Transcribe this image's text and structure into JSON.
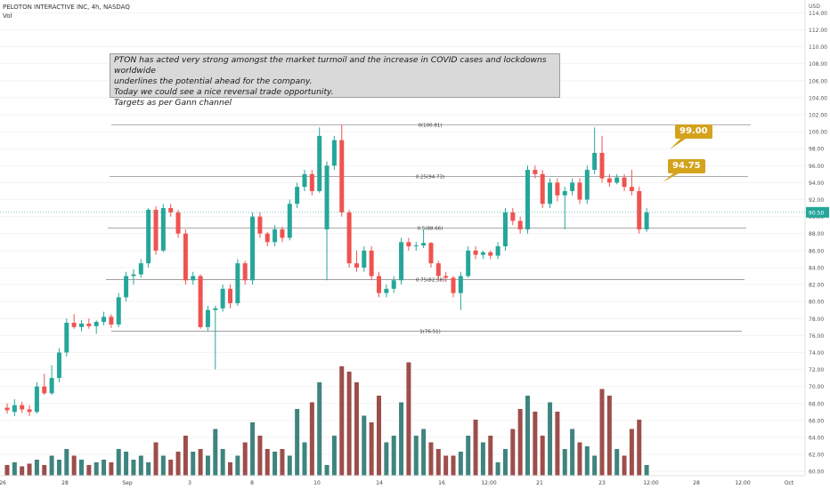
{
  "header": {
    "symbol": "PELOTON INTERACTIVE INC, 4h, NASDAQ",
    "volume_label": "Vol"
  },
  "annotation": {
    "lines": [
      "PTON has acted very strong amongst the market turmoil and the increase in COVID cases and lockdowns worldwide",
      "underlines the potential ahead for the company.",
      "Today we could see a nice reversal trade opportunity.",
      "Targets as per Gann channel"
    ]
  },
  "callouts": [
    {
      "label": "99.00",
      "value": 99.0,
      "color": "#d4a31c"
    },
    {
      "label": "94.75",
      "value": 94.75,
      "color": "#d4a31c"
    }
  ],
  "chart_data": {
    "type": "candlestick",
    "currency": "USD",
    "x_ticks": [
      "26",
      "28",
      "Sep",
      "3",
      "8",
      "10",
      "14",
      "16",
      "12:00",
      "21",
      "23",
      "12:00",
      "28",
      "12:00",
      "Oct"
    ],
    "y_ticks": [
      "114.00",
      "112.00",
      "110.00",
      "108.00",
      "106.00",
      "104.00",
      "102.00",
      "100.00",
      "98.00",
      "96.00",
      "94.00",
      "92.00",
      "90.00",
      "88.00",
      "86.00",
      "84.00",
      "82.00",
      "80.00",
      "78.00",
      "76.00",
      "74.00",
      "72.00",
      "70.00",
      "68.00",
      "66.00",
      "64.00",
      "62.00",
      "60.00"
    ],
    "ylim": [
      59.5,
      115.5
    ],
    "last_price": {
      "value": 90.5,
      "label": "90.50"
    },
    "fib_levels": [
      {
        "ratio": 0,
        "price": 100.81,
        "label": "0(100.81)"
      },
      {
        "ratio": 0.25,
        "price": 94.73,
        "label": "0.25(94.73)"
      },
      {
        "ratio": 0.5,
        "price": 88.66,
        "label": "0.5(88.66)"
      },
      {
        "ratio": 0.75,
        "price": 82.58,
        "label": "0.75(82.58)"
      },
      {
        "ratio": 1,
        "price": 76.51,
        "label": "1(76.51)"
      }
    ],
    "candles": [
      {
        "o": 67.5,
        "h": 68.0,
        "l": 66.8,
        "c": 67.2
      },
      {
        "o": 67.0,
        "h": 68.5,
        "l": 66.5,
        "c": 67.8
      },
      {
        "o": 67.8,
        "h": 68.2,
        "l": 66.9,
        "c": 67.3
      },
      {
        "o": 67.3,
        "h": 67.8,
        "l": 66.5,
        "c": 67.0
      },
      {
        "o": 67.0,
        "h": 70.5,
        "l": 66.8,
        "c": 70.0
      },
      {
        "o": 70.0,
        "h": 71.5,
        "l": 69.0,
        "c": 69.2
      },
      {
        "o": 69.2,
        "h": 72.5,
        "l": 69.0,
        "c": 71.0
      },
      {
        "o": 71.0,
        "h": 74.5,
        "l": 70.5,
        "c": 74.0
      },
      {
        "o": 74.0,
        "h": 78.0,
        "l": 73.5,
        "c": 77.5
      },
      {
        "o": 77.5,
        "h": 78.5,
        "l": 76.8,
        "c": 77.0
      },
      {
        "o": 77.0,
        "h": 77.8,
        "l": 76.5,
        "c": 77.4
      },
      {
        "o": 77.4,
        "h": 78.0,
        "l": 76.8,
        "c": 77.1
      },
      {
        "o": 77.1,
        "h": 77.8,
        "l": 76.2,
        "c": 77.6
      },
      {
        "o": 77.6,
        "h": 78.8,
        "l": 77.2,
        "c": 78.2
      },
      {
        "o": 78.2,
        "h": 78.5,
        "l": 76.9,
        "c": 77.3
      },
      {
        "o": 77.3,
        "h": 81.0,
        "l": 77.0,
        "c": 80.5
      },
      {
        "o": 80.5,
        "h": 83.5,
        "l": 80.0,
        "c": 83.0
      },
      {
        "o": 83.0,
        "h": 83.8,
        "l": 82.0,
        "c": 83.2
      },
      {
        "o": 83.2,
        "h": 85.0,
        "l": 82.8,
        "c": 84.5
      },
      {
        "o": 84.5,
        "h": 91.0,
        "l": 84.0,
        "c": 90.8
      },
      {
        "o": 90.8,
        "h": 91.2,
        "l": 85.5,
        "c": 86.0
      },
      {
        "o": 86.0,
        "h": 91.5,
        "l": 85.8,
        "c": 91.0
      },
      {
        "o": 91.0,
        "h": 91.5,
        "l": 90.0,
        "c": 90.5
      },
      {
        "o": 90.5,
        "h": 90.8,
        "l": 87.5,
        "c": 88.0
      },
      {
        "o": 88.0,
        "h": 88.5,
        "l": 82.0,
        "c": 82.5
      },
      {
        "o": 82.5,
        "h": 83.5,
        "l": 82.0,
        "c": 83.0
      },
      {
        "o": 83.0,
        "h": 83.2,
        "l": 76.8,
        "c": 77.0
      },
      {
        "o": 77.0,
        "h": 79.5,
        "l": 76.5,
        "c": 79.0
      },
      {
        "o": 79.0,
        "h": 79.5,
        "l": 72.0,
        "c": 79.2
      },
      {
        "o": 79.2,
        "h": 82.0,
        "l": 78.8,
        "c": 81.5
      },
      {
        "o": 81.5,
        "h": 82.0,
        "l": 79.2,
        "c": 79.8
      },
      {
        "o": 79.8,
        "h": 85.0,
        "l": 79.5,
        "c": 84.5
      },
      {
        "o": 84.5,
        "h": 84.8,
        "l": 82.0,
        "c": 82.5
      },
      {
        "o": 82.5,
        "h": 90.5,
        "l": 82.0,
        "c": 90.0
      },
      {
        "o": 90.0,
        "h": 90.5,
        "l": 87.5,
        "c": 88.0
      },
      {
        "o": 88.0,
        "h": 88.2,
        "l": 86.5,
        "c": 87.0
      },
      {
        "o": 87.0,
        "h": 89.0,
        "l": 86.5,
        "c": 88.5
      },
      {
        "o": 88.5,
        "h": 88.8,
        "l": 87.0,
        "c": 87.5
      },
      {
        "o": 87.5,
        "h": 92.0,
        "l": 87.2,
        "c": 91.5
      },
      {
        "o": 91.5,
        "h": 94.0,
        "l": 91.0,
        "c": 93.5
      },
      {
        "o": 93.5,
        "h": 95.5,
        "l": 93.0,
        "c": 95.0
      },
      {
        "o": 95.0,
        "h": 95.5,
        "l": 92.5,
        "c": 93.0
      },
      {
        "o": 93.0,
        "h": 100.5,
        "l": 92.8,
        "c": 99.5
      },
      {
        "o": 88.5,
        "h": 96.5,
        "l": 82.5,
        "c": 96.0
      },
      {
        "o": 96.0,
        "h": 99.5,
        "l": 95.5,
        "c": 99.0
      },
      {
        "o": 99.0,
        "h": 100.8,
        "l": 90.0,
        "c": 90.5
      },
      {
        "o": 90.5,
        "h": 90.8,
        "l": 84.0,
        "c": 84.5
      },
      {
        "o": 84.5,
        "h": 86.0,
        "l": 83.5,
        "c": 84.0
      },
      {
        "o": 84.0,
        "h": 86.5,
        "l": 83.5,
        "c": 86.0
      },
      {
        "o": 86.0,
        "h": 86.5,
        "l": 82.5,
        "c": 83.0
      },
      {
        "o": 83.0,
        "h": 83.5,
        "l": 80.5,
        "c": 81.0
      },
      {
        "o": 81.0,
        "h": 82.0,
        "l": 80.5,
        "c": 81.5
      },
      {
        "o": 81.5,
        "h": 83.0,
        "l": 81.0,
        "c": 82.5
      },
      {
        "o": 82.5,
        "h": 87.5,
        "l": 82.0,
        "c": 87.0
      },
      {
        "o": 87.0,
        "h": 87.5,
        "l": 86.0,
        "c": 86.5
      },
      {
        "o": 86.5,
        "h": 87.0,
        "l": 86.0,
        "c": 86.6
      },
      {
        "o": 86.6,
        "h": 88.5,
        "l": 86.3,
        "c": 86.9
      },
      {
        "o": 86.9,
        "h": 87.0,
        "l": 84.0,
        "c": 84.5
      },
      {
        "o": 84.5,
        "h": 84.8,
        "l": 82.5,
        "c": 83.0
      },
      {
        "o": 83.0,
        "h": 83.5,
        "l": 82.3,
        "c": 82.8
      },
      {
        "o": 82.8,
        "h": 83.0,
        "l": 80.5,
        "c": 81.0
      },
      {
        "o": 81.0,
        "h": 83.5,
        "l": 79.0,
        "c": 83.0
      },
      {
        "o": 83.0,
        "h": 86.5,
        "l": 82.8,
        "c": 86.0
      },
      {
        "o": 86.0,
        "h": 86.5,
        "l": 85.0,
        "c": 85.5
      },
      {
        "o": 85.5,
        "h": 86.0,
        "l": 85.0,
        "c": 85.8
      },
      {
        "o": 85.8,
        "h": 86.0,
        "l": 85.0,
        "c": 85.4
      },
      {
        "o": 85.4,
        "h": 87.0,
        "l": 85.0,
        "c": 86.5
      },
      {
        "o": 86.5,
        "h": 91.0,
        "l": 86.0,
        "c": 90.5
      },
      {
        "o": 90.5,
        "h": 91.0,
        "l": 89.0,
        "c": 89.5
      },
      {
        "o": 89.5,
        "h": 90.0,
        "l": 88.0,
        "c": 88.5
      },
      {
        "o": 88.5,
        "h": 96.0,
        "l": 88.0,
        "c": 95.5
      },
      {
        "o": 95.5,
        "h": 96.0,
        "l": 94.5,
        "c": 95.0
      },
      {
        "o": 95.0,
        "h": 95.5,
        "l": 91.0,
        "c": 91.5
      },
      {
        "o": 91.5,
        "h": 94.5,
        "l": 91.0,
        "c": 94.0
      },
      {
        "o": 94.0,
        "h": 94.5,
        "l": 91.8,
        "c": 92.5
      },
      {
        "o": 92.5,
        "h": 93.5,
        "l": 88.5,
        "c": 93.0
      },
      {
        "o": 93.0,
        "h": 94.5,
        "l": 92.5,
        "c": 94.0
      },
      {
        "o": 94.0,
        "h": 94.5,
        "l": 91.5,
        "c": 92.0
      },
      {
        "o": 92.0,
        "h": 96.0,
        "l": 91.5,
        "c": 95.5
      },
      {
        "o": 95.5,
        "h": 100.5,
        "l": 95.0,
        "c": 97.5
      },
      {
        "o": 97.5,
        "h": 99.5,
        "l": 94.0,
        "c": 94.5
      },
      {
        "o": 94.5,
        "h": 95.0,
        "l": 93.5,
        "c": 94.0
      },
      {
        "o": 94.0,
        "h": 95.0,
        "l": 93.8,
        "c": 94.6
      },
      {
        "o": 94.6,
        "h": 95.0,
        "l": 93.0,
        "c": 93.5
      },
      {
        "o": 93.5,
        "h": 95.5,
        "l": 92.5,
        "c": 93.0
      },
      {
        "o": 93.0,
        "h": 93.5,
        "l": 88.0,
        "c": 88.5
      },
      {
        "o": 88.5,
        "h": 91.0,
        "l": 88.2,
        "c": 90.5
      }
    ],
    "volume": {
      "max_bar": 1.0,
      "values": [
        0.08,
        0.1,
        0.07,
        0.09,
        0.12,
        0.08,
        0.15,
        0.12,
        0.2,
        0.15,
        0.12,
        0.08,
        0.1,
        0.12,
        0.1,
        0.2,
        0.18,
        0.12,
        0.15,
        0.1,
        0.25,
        0.15,
        0.12,
        0.18,
        0.3,
        0.18,
        0.2,
        0.15,
        0.35,
        0.2,
        0.1,
        0.15,
        0.25,
        0.4,
        0.3,
        0.2,
        0.18,
        0.2,
        0.15,
        0.5,
        0.25,
        0.55,
        0.7,
        0.08,
        0.3,
        0.82,
        0.78,
        0.7,
        0.45,
        0.4,
        0.6,
        0.25,
        0.3,
        0.55,
        0.85,
        0.3,
        0.35,
        0.25,
        0.2,
        0.15,
        0.15,
        0.18,
        0.3,
        0.42,
        0.25,
        0.3,
        0.1,
        0.2,
        0.35,
        0.5,
        0.6,
        0.48,
        0.3,
        0.55,
        0.48,
        0.2,
        0.35,
        0.25,
        0.22,
        0.15,
        0.65,
        0.6,
        0.2,
        0.15,
        0.35,
        0.42,
        0.08
      ]
    },
    "colors": {
      "up": "#26a69a",
      "down": "#ef5350",
      "up_volume": "#1d6f67",
      "down_volume": "#8c2f2c"
    }
  }
}
